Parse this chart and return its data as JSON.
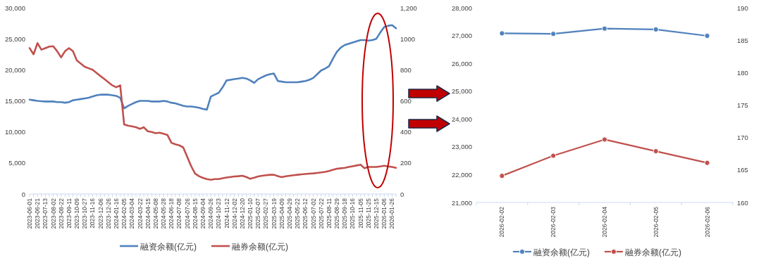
{
  "chart_data": [
    {
      "type": "line",
      "categories": [
        "2023-06-01",
        null,
        "2023-06-21",
        null,
        "2023-07-13",
        null,
        "2023-08-02",
        null,
        "2023-08-22",
        null,
        "2023-09-11",
        null,
        "2023-10-09",
        null,
        "2023-10-27",
        null,
        "2023-11-16",
        null,
        "2023-12-06",
        null,
        "2023-12-26",
        null,
        "2024-01-16",
        null,
        "2024-02-05",
        null,
        "2024-03-04",
        null,
        "2024-03-22",
        null,
        "2024-04-15",
        null,
        "2024-05-08",
        null,
        "2024-05-28",
        null,
        "2024-06-18",
        null,
        "2024-07-08",
        null,
        "2024-07-26",
        null,
        "2024-08-15",
        null,
        "2024-09-04",
        null,
        "2024-09-26",
        null,
        "2024-10-23",
        null,
        "2024-11-12",
        null,
        "2024-12-02",
        null,
        "2024-12-20",
        null,
        "2025-01-10",
        null,
        "2025-02-07",
        null,
        "2025-02-27",
        null,
        "2025-03-19",
        null,
        "2025-04-09",
        null,
        "2025-04-29",
        null,
        "2025-05-22",
        null,
        "2025-06-12",
        null,
        "2025-07-02",
        null,
        "2025-07-22",
        null,
        "2025-08-11",
        null,
        "2025-08-29",
        null,
        "2025-09-18",
        null,
        "2025-10-16",
        null,
        "2025-11-05",
        null,
        "2025-11-25",
        null,
        "2025-12-15",
        null,
        "2026-01-06",
        null,
        "2026-01-26",
        null
      ],
      "series": [
        {
          "name": "融资余额(亿元)",
          "color": "#4f81bd",
          "values": [
            15200,
            15100,
            15000,
            14950,
            14900,
            14900,
            14900,
            14800,
            14800,
            14700,
            14800,
            15100,
            15200,
            15300,
            15400,
            15500,
            15700,
            15900,
            16000,
            16000,
            16000,
            15900,
            15800,
            15500,
            13800,
            14200,
            14500,
            14800,
            15000,
            15000,
            15000,
            14900,
            14900,
            14900,
            15000,
            14900,
            14700,
            14600,
            14400,
            14200,
            14100,
            14100,
            14000,
            13900,
            13700,
            13600,
            15700,
            16000,
            16300,
            17200,
            18300,
            18400,
            18500,
            18600,
            18700,
            18600,
            18300,
            17900,
            18500,
            18800,
            19100,
            19300,
            19400,
            18200,
            18100,
            18000,
            18000,
            18000,
            18000,
            18100,
            18200,
            18400,
            18700,
            19300,
            19900,
            20200,
            20600,
            21800,
            22900,
            23600,
            24000,
            24200,
            24400,
            24600,
            24800,
            24800,
            24700,
            24800,
            25000,
            26000,
            26900,
            27100,
            27200,
            26700
          ]
        },
        {
          "name": "融券余额(亿元)",
          "color": "#c0504d",
          "axis": "y2",
          "values": [
            940,
            900,
            972,
            930,
            940,
            950,
            952,
            920,
            880,
            920,
            940,
            920,
            860,
            840,
            820,
            810,
            800,
            780,
            760,
            740,
            720,
            700,
            688,
            700,
            448,
            440,
            436,
            430,
            420,
            430,
            404,
            400,
            392,
            395,
            388,
            380,
            330,
            320,
            314,
            300,
            240,
            180,
            132,
            115,
            104,
            96,
            92,
            96,
            96,
            102,
            106,
            110,
            113,
            115,
            118,
            110,
            98,
            105,
            113,
            118,
            121,
            124,
            124,
            115,
            109,
            114,
            118,
            121,
            124,
            127,
            129,
            131,
            133,
            136,
            139,
            143,
            148,
            156,
            163,
            166,
            169,
            174,
            179,
            184,
            189,
            166,
            174,
            174,
            174,
            178,
            182,
            178,
            174,
            169
          ]
        }
      ],
      "ylim": [
        0,
        30000
      ],
      "yticks": [
        0,
        {
          "value": 5000,
          "label": "5,000"
        },
        {
          "value": 10000,
          "label": "10,000"
        },
        {
          "value": 15000,
          "label": "15,000"
        },
        {
          "value": 20000,
          "label": "20,000"
        },
        {
          "value": 25000,
          "label": "25,000"
        },
        {
          "value": 30000,
          "label": "30,000"
        }
      ],
      "y2lim": [
        0,
        1200
      ],
      "y2ticks": [
        0,
        200,
        400,
        600,
        800,
        1000,
        {
          "value": 1200,
          "label": "1,200"
        }
      ],
      "legend": "bottom",
      "marker": "none",
      "grid": false
    },
    {
      "type": "line",
      "categories": [
        "2026-02-02",
        "2026-02-03",
        "2026-02-04",
        "2026-02-05",
        "2026-02-06"
      ],
      "series": [
        {
          "name": "融资余额(亿元)",
          "color": "#4f81bd",
          "values": [
            27080,
            27060,
            27250,
            27220,
            26990
          ]
        },
        {
          "name": "融券余额(亿元)",
          "color": "#c0504d",
          "axis": "y2",
          "values": [
            164.1,
            167.2,
            169.7,
            167.9,
            166.1
          ]
        }
      ],
      "ylim": [
        21000,
        28000
      ],
      "yticks": [
        {
          "value": 21000,
          "label": "21,000"
        },
        {
          "value": 22000,
          "label": "22,000"
        },
        {
          "value": 23000,
          "label": "23,000"
        },
        {
          "value": 24000,
          "label": "24,000"
        },
        {
          "value": 25000,
          "label": "25,000"
        },
        {
          "value": 26000,
          "label": "26,000"
        },
        {
          "value": 27000,
          "label": "27,000"
        },
        {
          "value": 28000,
          "label": "28,000"
        }
      ],
      "y2lim": [
        160,
        190
      ],
      "y2ticks": [
        160,
        165,
        170,
        175,
        180,
        185,
        190
      ],
      "legend": "bottom",
      "marker": "circle",
      "grid": false
    }
  ]
}
